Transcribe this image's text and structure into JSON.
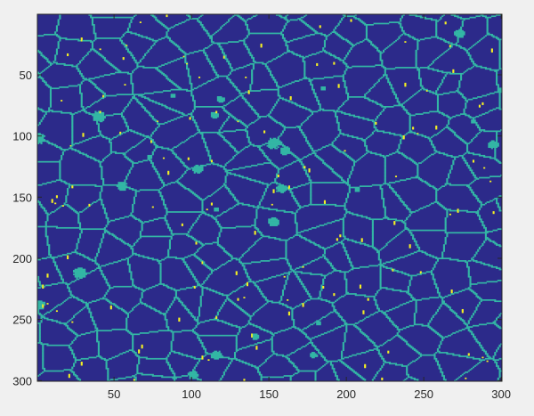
{
  "chart_data": {
    "type": "heatmap",
    "title": "",
    "xlabel": "",
    "ylabel": "",
    "xlim": [
      1,
      300
    ],
    "ylim": [
      1,
      300
    ],
    "y_reversed": true,
    "x_ticks": [
      50,
      100,
      150,
      200,
      250,
      300
    ],
    "y_ticks": [
      50,
      100,
      150,
      200,
      250,
      300
    ],
    "grid": false,
    "legend": "none",
    "colormap": "parula",
    "class_values": [
      0,
      1,
      2
    ],
    "class_colors": [
      "#2c2a8a",
      "#33b6a5",
      "#f5f023"
    ],
    "class_meaning": [
      "grain interior",
      "grain boundary",
      "isolated pixel"
    ],
    "background_color": "#f0f0f0",
    "axes_color": "#262626"
  }
}
